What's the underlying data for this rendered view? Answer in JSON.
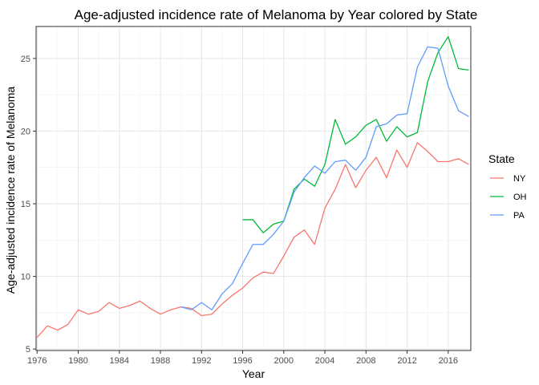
{
  "chart_data": {
    "type": "line",
    "title": "Age-adjusted incidence rate of Melanoma by Year colored by State",
    "xlabel": "Year",
    "ylabel": "Age-adjusted incidence rate of Melanoma",
    "xlim": [
      1975.9,
      2018.2
    ],
    "ylim": [
      4.9,
      27.2
    ],
    "x_ticks": [
      1976,
      1980,
      1984,
      1988,
      1992,
      1996,
      2000,
      2004,
      2008,
      2012,
      2016
    ],
    "y_ticks": [
      5,
      10,
      15,
      20,
      25
    ],
    "grid": true,
    "legend": {
      "title": "State",
      "position": "right"
    },
    "series": [
      {
        "name": "NY",
        "color": "#F8766D",
        "x": [
          1976,
          1977,
          1978,
          1979,
          1980,
          1981,
          1982,
          1983,
          1984,
          1985,
          1986,
          1987,
          1988,
          1989,
          1990,
          1991,
          1992,
          1993,
          1994,
          1995,
          1996,
          1997,
          1998,
          1999,
          2000,
          2001,
          2002,
          2003,
          2004,
          2005,
          2006,
          2007,
          2008,
          2009,
          2010,
          2011,
          2012,
          2013,
          2014,
          2015,
          2016,
          2017,
          2018
        ],
        "y": [
          5.8,
          6.6,
          6.3,
          6.7,
          7.7,
          7.4,
          7.6,
          8.2,
          7.8,
          8.0,
          8.3,
          7.8,
          7.4,
          7.7,
          7.9,
          7.8,
          7.3,
          7.4,
          8.1,
          8.7,
          9.2,
          9.9,
          10.3,
          10.2,
          11.4,
          12.7,
          13.2,
          12.2,
          14.7,
          16.0,
          17.7,
          16.1,
          17.3,
          18.2,
          16.8,
          18.7,
          17.5,
          19.2,
          18.6,
          17.9,
          17.9,
          18.1,
          17.7
        ]
      },
      {
        "name": "OH",
        "color": "#00BA38",
        "x": [
          1996,
          1997,
          1998,
          1999,
          2000,
          2001,
          2002,
          2003,
          2004,
          2005,
          2006,
          2007,
          2008,
          2009,
          2010,
          2011,
          2012,
          2013,
          2014,
          2015,
          2016,
          2017,
          2018
        ],
        "y": [
          13.9,
          13.9,
          13.0,
          13.6,
          13.8,
          16.0,
          16.7,
          16.2,
          17.7,
          20.8,
          19.1,
          19.6,
          20.4,
          20.8,
          19.3,
          20.3,
          19.6,
          19.9,
          23.4,
          25.4,
          26.5,
          24.3,
          24.2
        ]
      },
      {
        "name": "PA",
        "color": "#619CFF",
        "x": [
          1990,
          1991,
          1992,
          1993,
          1994,
          1995,
          1996,
          1997,
          1998,
          1999,
          2000,
          2001,
          2002,
          2003,
          2004,
          2005,
          2006,
          2007,
          2008,
          2009,
          2010,
          2011,
          2012,
          2013,
          2014,
          2015,
          2016,
          2017,
          2018
        ],
        "y": [
          7.9,
          7.7,
          8.2,
          7.7,
          8.8,
          9.5,
          10.9,
          12.2,
          12.2,
          12.9,
          13.8,
          15.8,
          16.8,
          17.6,
          17.1,
          17.9,
          18.0,
          17.3,
          18.2,
          20.3,
          20.5,
          21.1,
          21.2,
          24.4,
          25.8,
          25.7,
          23.1,
          21.4,
          21.0
        ]
      }
    ]
  }
}
